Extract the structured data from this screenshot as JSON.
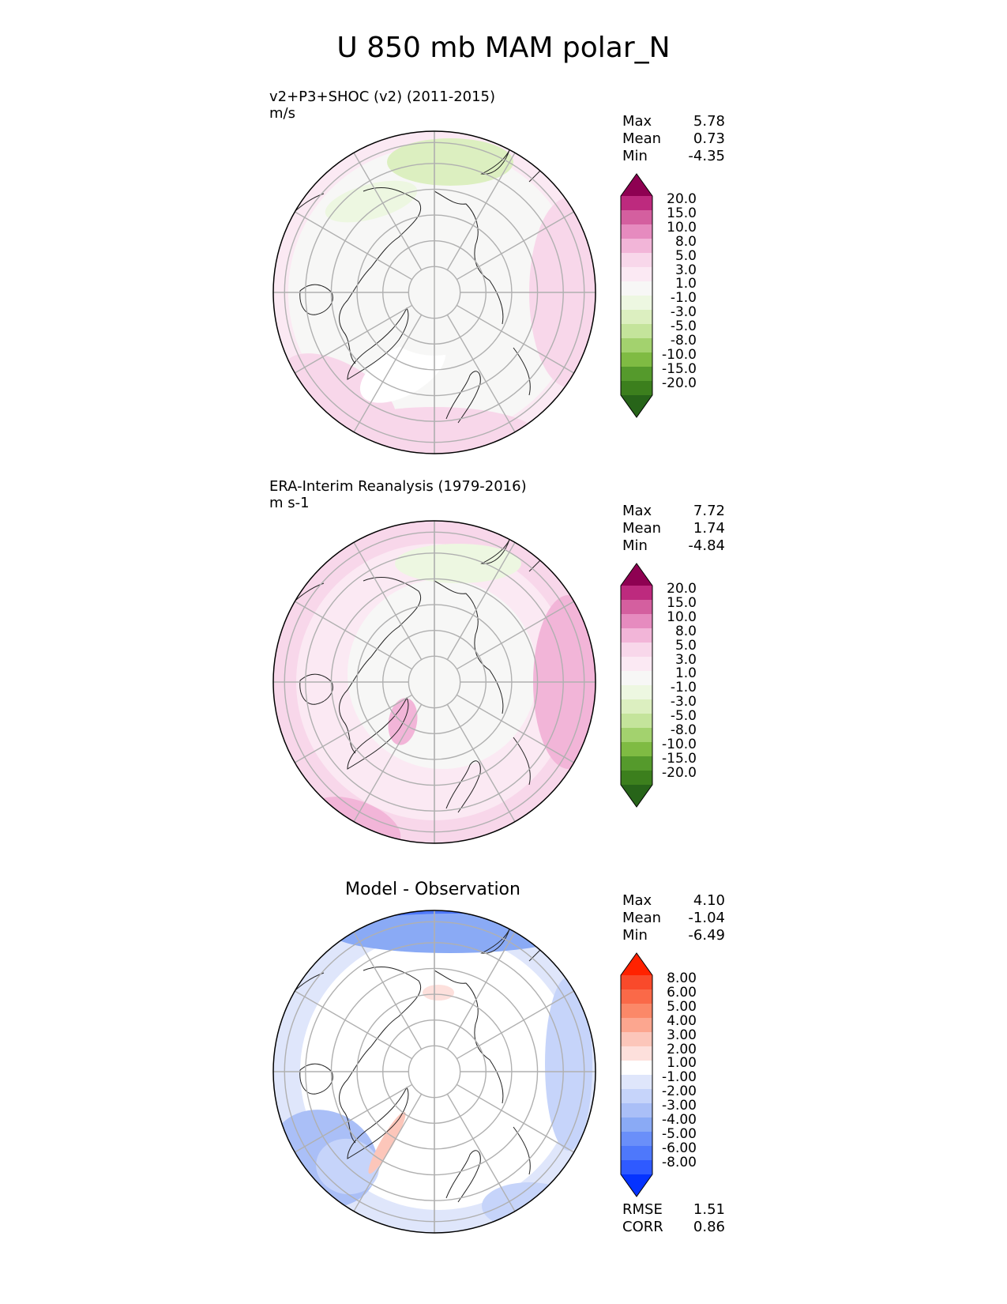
{
  "title": "U 850 mb MAM polar_N",
  "colors": {
    "test_ref_levels": [
      "#276419",
      "#3c7f1d",
      "#559a2c",
      "#7fbb43",
      "#a3d26e",
      "#c4e49b",
      "#dcefc0",
      "#edf7e1",
      "#f7f7f6",
      "#fbe9f3",
      "#f8d7ea",
      "#f2b5d8",
      "#e68bbf",
      "#d45f9f",
      "#bd2a7e",
      "#8e0152"
    ],
    "diff_levels": [
      "#0533ff",
      "#2f5aff",
      "#4e78fb",
      "#6a8ff9",
      "#8aaaf5",
      "#aabff7",
      "#c6d4fa",
      "#dfe6fb",
      "#ffffff",
      "#fde0dc",
      "#fcc6ba",
      "#fca68f",
      "#fb8868",
      "#fa6948",
      "#f94a2b",
      "#ff2200"
    ],
    "grid": "#b0b0b0",
    "coast": "#222222"
  },
  "panels": [
    {
      "name": "v2+P3+SHOC (v2) (2011-2015)",
      "units": "m/s",
      "stats": [
        {
          "label": "Max",
          "value": "5.78"
        },
        {
          "label": "Mean",
          "value": "0.73"
        },
        {
          "label": "Min",
          "value": "-4.35"
        }
      ],
      "colorbar_ticks": [
        "20.0",
        "15.0",
        "10.0",
        "8.0",
        "5.0",
        "3.0",
        "1.0",
        "-1.0",
        "-3.0",
        "-5.0",
        "-8.0",
        "-10.0",
        "-15.0",
        "-20.0"
      ]
    },
    {
      "name": "ERA-Interim Reanalysis (1979-2016)",
      "units": "m s-1",
      "stats": [
        {
          "label": "Max",
          "value": "7.72"
        },
        {
          "label": "Mean",
          "value": "1.74"
        },
        {
          "label": "Min",
          "value": "-4.84"
        }
      ],
      "colorbar_ticks": [
        "20.0",
        "15.0",
        "10.0",
        "8.0",
        "5.0",
        "3.0",
        "1.0",
        "-1.0",
        "-3.0",
        "-5.0",
        "-8.0",
        "-10.0",
        "-15.0",
        "-20.0"
      ]
    },
    {
      "name": "Model - Observation",
      "stats": [
        {
          "label": "Max",
          "value": "4.10"
        },
        {
          "label": "Mean",
          "value": "-1.04"
        },
        {
          "label": "Min",
          "value": "-6.49"
        }
      ],
      "colorbar_ticks": [
        "8.00",
        "6.00",
        "5.00",
        "4.00",
        "3.00",
        "2.00",
        "1.00",
        "-1.00",
        "-2.00",
        "-3.00",
        "-4.00",
        "-5.00",
        "-6.00",
        "-8.00"
      ],
      "metrics": [
        {
          "label": "RMSE",
          "value": "1.51"
        },
        {
          "label": "CORR",
          "value": "0.86"
        }
      ]
    }
  ],
  "chart_data": {
    "type": "heatmap",
    "projection": "north polar stereographic",
    "levels_test_ref": [
      -20,
      -15,
      -10,
      -8,
      -5,
      -3,
      -1,
      1,
      3,
      5,
      8,
      10,
      15,
      20
    ],
    "levels_diff": [
      -8,
      -6,
      -5,
      -4,
      -3,
      -2,
      -1,
      1,
      2,
      3,
      4,
      5,
      6,
      8
    ]
  }
}
